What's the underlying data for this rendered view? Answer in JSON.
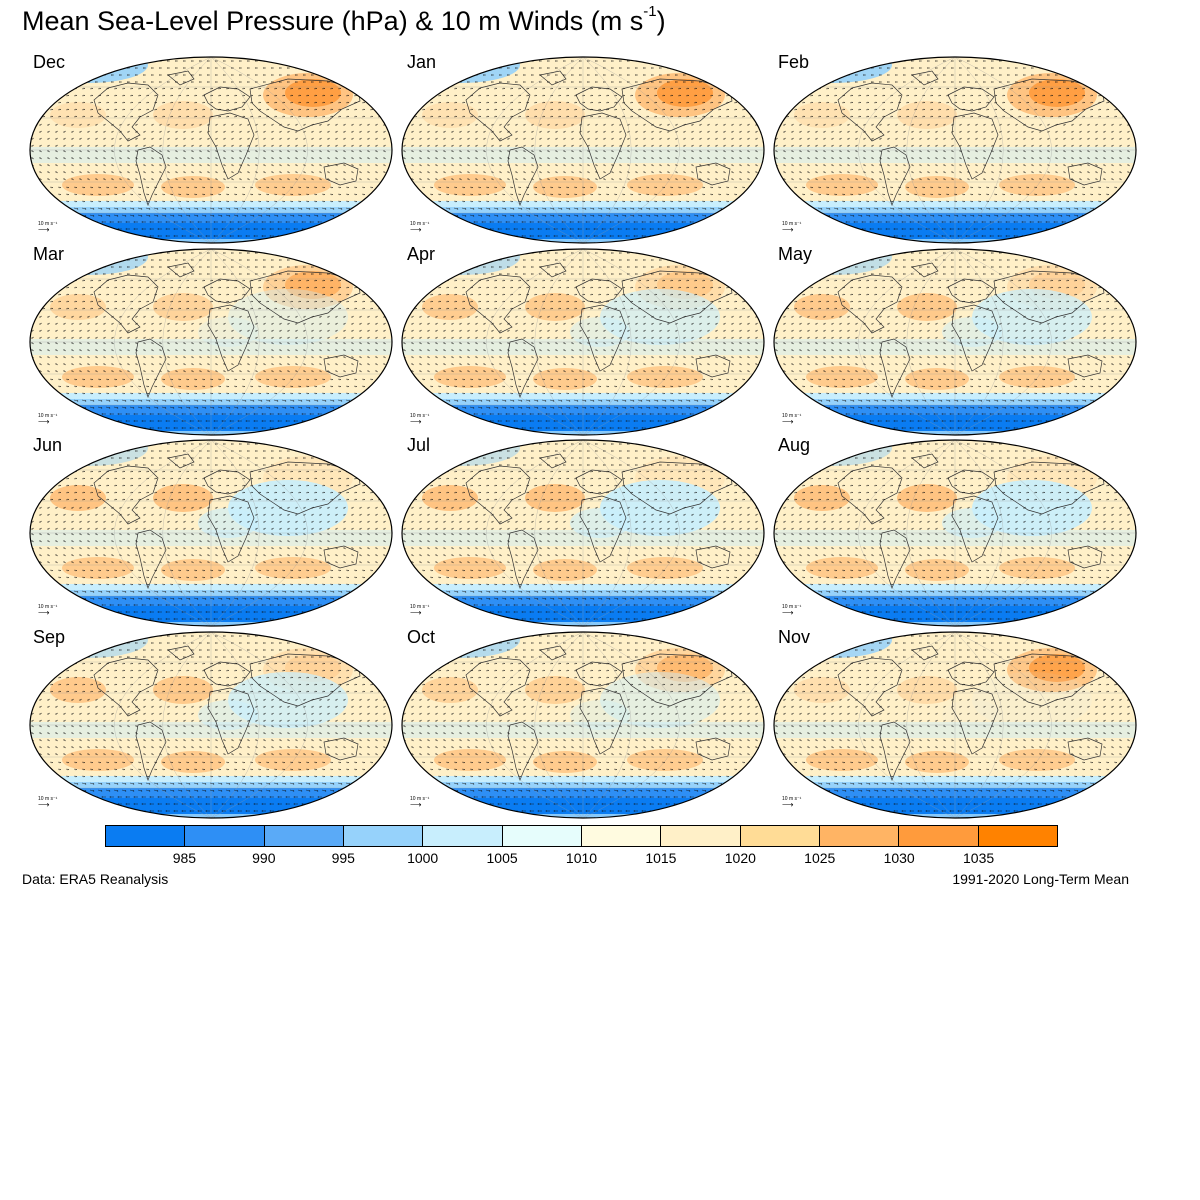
{
  "title": {
    "main": "Mean Sea-Level Pressure (hPa) & 10 m Winds (m s",
    "sup": "-1",
    "close": ")"
  },
  "months": [
    "Dec",
    "Jan",
    "Feb",
    "Mar",
    "Apr",
    "May",
    "Jun",
    "Jul",
    "Aug",
    "Sep",
    "Oct",
    "Nov"
  ],
  "reference_vector": {
    "label": "10 m s⁻¹",
    "arrow": "⟶"
  },
  "colorbar": {
    "colors": [
      "#0a7cf2",
      "#2e8ff5",
      "#5aaaf7",
      "#96d2fb",
      "#c8eefd",
      "#e6fdfc",
      "#fffbe0",
      "#fff0c8",
      "#ffdc96",
      "#ffb464",
      "#ff9b3c",
      "#ff8200"
    ],
    "tick_labels": [
      "985",
      "990",
      "995",
      "1000",
      "1005",
      "1010",
      "1015",
      "1020",
      "1025",
      "1030",
      "1035"
    ]
  },
  "footer": {
    "left": "Data: ERA5 Reanalysis",
    "right": "1991-2020 Long-Term Mean"
  },
  "map_colors": {
    "base": "#fff0c8",
    "high": "#ffc482",
    "very_high": "#ff9b3c",
    "low": "#c8eefd",
    "very_low": "#2e8ff5",
    "deep_low": "#0a7cf2",
    "arctic": "#96d2fb"
  }
}
